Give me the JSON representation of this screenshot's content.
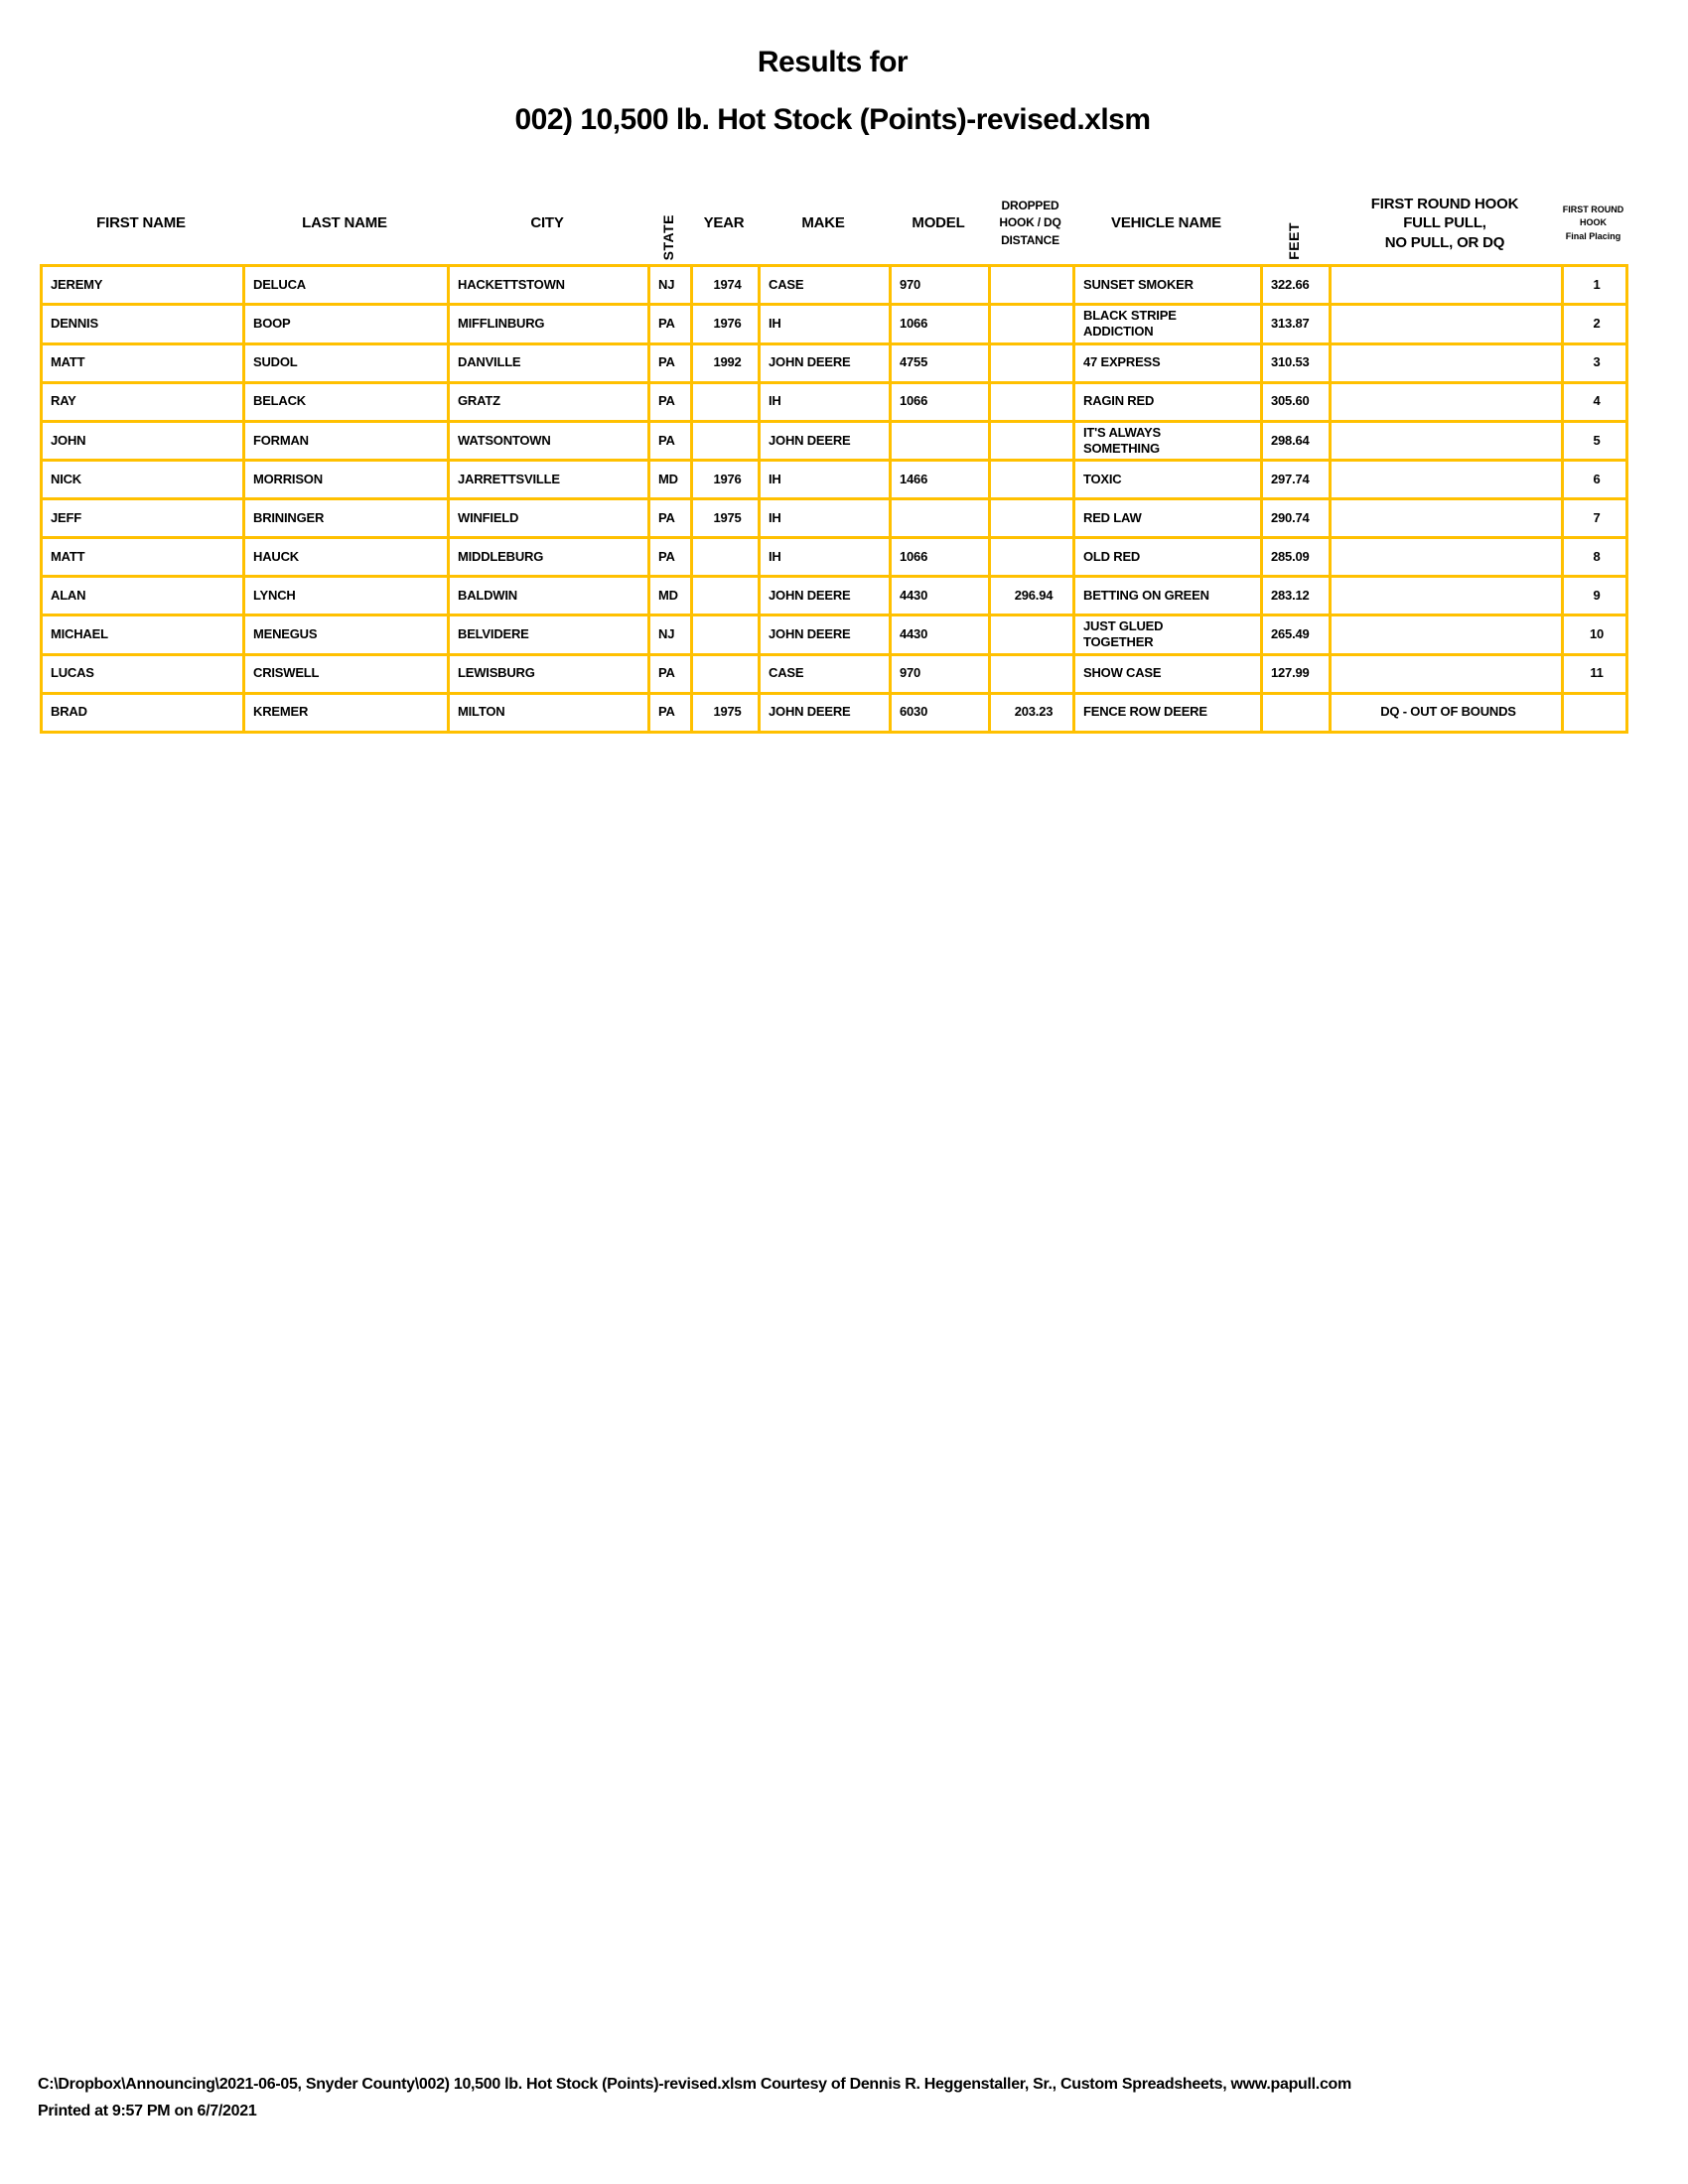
{
  "title": {
    "line1": "Results for",
    "line2": "002) 10,500 lb. Hot Stock (Points)-revised.xlsm"
  },
  "colors": {
    "border": "#FFC000",
    "text": "#000000"
  },
  "table": {
    "columns": [
      {
        "id": "first_name",
        "label": "FIRST NAME"
      },
      {
        "id": "last_name",
        "label": "LAST NAME"
      },
      {
        "id": "city",
        "label": "CITY"
      },
      {
        "id": "state",
        "label": "STATE",
        "vertical": true
      },
      {
        "id": "year",
        "label": "YEAR"
      },
      {
        "id": "make",
        "label": "MAKE"
      },
      {
        "id": "model",
        "label": "MODEL"
      },
      {
        "id": "dropped",
        "label": "DROPPED\nHOOK / DQ\nDISTANCE",
        "mid": true
      },
      {
        "id": "vehicle",
        "label": "VEHICLE NAME"
      },
      {
        "id": "feet",
        "label": "FEET",
        "vertical": true
      },
      {
        "id": "first_round",
        "label": "FIRST ROUND HOOK\nFULL PULL,\nNO PULL, OR DQ"
      },
      {
        "id": "placing",
        "label": "FIRST ROUND\nHOOK\nFinal Placing",
        "small": true
      }
    ],
    "rows": [
      {
        "first_name": "JEREMY",
        "last_name": "DELUCA",
        "city": "HACKETTSTOWN",
        "state": "NJ",
        "year": "1974",
        "make": "CASE",
        "model": "970",
        "dropped": "",
        "vehicle": "SUNSET SMOKER",
        "feet": "322.66",
        "first_round": "",
        "placing": "1"
      },
      {
        "first_name": "DENNIS",
        "last_name": "BOOP",
        "city": "MIFFLINBURG",
        "state": "PA",
        "year": "1976",
        "make": "IH",
        "model": "1066",
        "dropped": "",
        "vehicle": "BLACK STRIPE\nADDICTION",
        "feet": "313.87",
        "first_round": "",
        "placing": "2"
      },
      {
        "first_name": "MATT",
        "last_name": "SUDOL",
        "city": "DANVILLE",
        "state": "PA",
        "year": "1992",
        "make": "JOHN DEERE",
        "model": "4755",
        "dropped": "",
        "vehicle": "47 EXPRESS",
        "feet": "310.53",
        "first_round": "",
        "placing": "3"
      },
      {
        "first_name": "RAY",
        "last_name": "BELACK",
        "city": "GRATZ",
        "state": "PA",
        "year": "",
        "make": "IH",
        "model": "1066",
        "dropped": "",
        "vehicle": "RAGIN RED",
        "feet": "305.60",
        "first_round": "",
        "placing": "4"
      },
      {
        "first_name": "JOHN",
        "last_name": "FORMAN",
        "city": "WATSONTOWN",
        "state": "PA",
        "year": "",
        "make": "JOHN DEERE",
        "model": "",
        "dropped": "",
        "vehicle": "IT'S ALWAYS\nSOMETHING",
        "feet": "298.64",
        "first_round": "",
        "placing": "5"
      },
      {
        "first_name": "NICK",
        "last_name": "MORRISON",
        "city": "JARRETTSVILLE",
        "state": "MD",
        "year": "1976",
        "make": "IH",
        "model": "1466",
        "dropped": "",
        "vehicle": "TOXIC",
        "feet": "297.74",
        "first_round": "",
        "placing": "6"
      },
      {
        "first_name": "JEFF",
        "last_name": "BRININGER",
        "city": "WINFIELD",
        "state": "PA",
        "year": "1975",
        "make": "IH",
        "model": "",
        "dropped": "",
        "vehicle": "RED LAW",
        "feet": "290.74",
        "first_round": "",
        "placing": "7"
      },
      {
        "first_name": "MATT",
        "last_name": "HAUCK",
        "city": "MIDDLEBURG",
        "state": "PA",
        "year": "",
        "make": "IH",
        "model": "1066",
        "dropped": "",
        "vehicle": "OLD RED",
        "feet": "285.09",
        "first_round": "",
        "placing": "8"
      },
      {
        "first_name": "ALAN",
        "last_name": "LYNCH",
        "city": "BALDWIN",
        "state": "MD",
        "year": "",
        "make": "JOHN DEERE",
        "model": "4430",
        "dropped": "296.94",
        "vehicle": "BETTING ON GREEN",
        "feet": "283.12",
        "first_round": "",
        "placing": "9"
      },
      {
        "first_name": "MICHAEL",
        "last_name": "MENEGUS",
        "city": "BELVIDERE",
        "state": "NJ",
        "year": "",
        "make": "JOHN DEERE",
        "model": "4430",
        "dropped": "",
        "vehicle": "JUST GLUED\nTOGETHER",
        "feet": "265.49",
        "first_round": "",
        "placing": "10"
      },
      {
        "first_name": "LUCAS",
        "last_name": "CRISWELL",
        "city": "LEWISBURG",
        "state": "PA",
        "year": "",
        "make": "CASE",
        "model": "970",
        "dropped": "",
        "vehicle": "SHOW CASE",
        "feet": "127.99",
        "first_round": "",
        "placing": "11"
      },
      {
        "first_name": "BRAD",
        "last_name": "KREMER",
        "city": "MILTON",
        "state": "PA",
        "year": "1975",
        "make": "JOHN DEERE",
        "model": "6030",
        "dropped": "203.23",
        "vehicle": "FENCE ROW DEERE",
        "feet": "",
        "first_round": "DQ - OUT OF BOUNDS",
        "placing": ""
      }
    ]
  },
  "footer": {
    "line1": "C:\\Dropbox\\Announcing\\2021-06-05, Snyder County\\002) 10,500 lb. Hot Stock (Points)-revised.xlsm  Courtesy of Dennis R. Heggenstaller, Sr., Custom Spreadsheets, www.papull.com",
    "line2": "Printed at 9:57 PM on 6/7/2021"
  }
}
